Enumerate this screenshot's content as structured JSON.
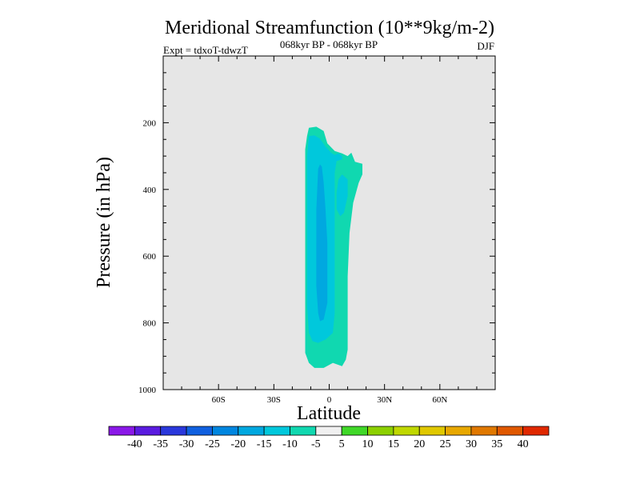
{
  "chart_data": {
    "type": "contour",
    "title": "Meridional Streamfunction (10**9kg/m-2)",
    "subtitle": "068kyr BP - 068kyr BP",
    "left_label": "Expt = tdxoT-tdwzT",
    "right_label": "DJF",
    "xlabel": "Latitude",
    "ylabel": "Pressure (in hPa)",
    "xlim": [
      -90,
      90
    ],
    "ylim": [
      1000,
      0
    ],
    "x_ticks": [
      {
        "value": -60,
        "label": "60S"
      },
      {
        "value": -30,
        "label": "30S"
      },
      {
        "value": 0,
        "label": "0"
      },
      {
        "value": 30,
        "label": "30N"
      },
      {
        "value": 60,
        "label": "60N"
      }
    ],
    "y_ticks": [
      {
        "value": 200,
        "label": "200"
      },
      {
        "value": 400,
        "label": "400"
      },
      {
        "value": 600,
        "label": "600"
      },
      {
        "value": 800,
        "label": "800"
      },
      {
        "value": 1000,
        "label": "1000"
      }
    ],
    "background_color": "#e6e6e6",
    "contour_regions": [
      {
        "level": "-10 to -5",
        "color": "#10d8b0",
        "outline": [
          [
            -11,
            215
          ],
          [
            -7,
            212
          ],
          [
            -3,
            225
          ],
          [
            -1,
            262
          ],
          [
            3,
            285
          ],
          [
            7,
            292
          ],
          [
            10,
            300
          ],
          [
            12,
            290
          ],
          [
            14,
            317
          ],
          [
            18,
            323
          ],
          [
            18,
            355
          ],
          [
            16,
            380
          ],
          [
            13,
            440
          ],
          [
            11,
            530
          ],
          [
            10,
            660
          ],
          [
            10,
            800
          ],
          [
            10,
            880
          ],
          [
            9,
            910
          ],
          [
            7,
            930
          ],
          [
            2,
            920
          ],
          [
            -3,
            935
          ],
          [
            -8,
            935
          ],
          [
            -11,
            920
          ],
          [
            -13,
            890
          ],
          [
            -13,
            820
          ],
          [
            -13,
            700
          ],
          [
            -13,
            550
          ],
          [
            -13,
            400
          ],
          [
            -13,
            280
          ],
          [
            -12,
            240
          ]
        ]
      },
      {
        "level": "-15 to -10",
        "color": "#00c8dc",
        "outline": [
          [
            -11,
            240
          ],
          [
            -8,
            238
          ],
          [
            -5,
            248
          ],
          [
            -2,
            272
          ],
          [
            1,
            290
          ],
          [
            3,
            297
          ],
          [
            5,
            292
          ],
          [
            7,
            300
          ],
          [
            7,
            310
          ],
          [
            4,
            315
          ],
          [
            3,
            350
          ],
          [
            3,
            450
          ],
          [
            3,
            560
          ],
          [
            3,
            680
          ],
          [
            3,
            770
          ],
          [
            2,
            830
          ],
          [
            -2,
            850
          ],
          [
            -6,
            860
          ],
          [
            -9,
            855
          ],
          [
            -11,
            830
          ],
          [
            -12,
            750
          ],
          [
            -12,
            640
          ],
          [
            -12,
            520
          ],
          [
            -12,
            400
          ],
          [
            -12,
            300
          ]
        ]
      },
      {
        "level": "-15 to -10",
        "color": "#00c8dc",
        "outline": [
          [
            5,
            370
          ],
          [
            7,
            355
          ],
          [
            10,
            370
          ],
          [
            10,
            420
          ],
          [
            8,
            470
          ],
          [
            6,
            480
          ],
          [
            4,
            460
          ],
          [
            4,
            410
          ]
        ]
      },
      {
        "level": "-20 to -15",
        "color": "#00a8e0",
        "outline": [
          [
            -6,
            338
          ],
          [
            -5,
            325
          ],
          [
            -4,
            332
          ],
          [
            -3,
            380
          ],
          [
            -2,
            460
          ],
          [
            -1,
            560
          ],
          [
            -1,
            660
          ],
          [
            -1,
            740
          ],
          [
            -3,
            790
          ],
          [
            -5,
            795
          ],
          [
            -6,
            770
          ],
          [
            -7,
            690
          ],
          [
            -7,
            580
          ],
          [
            -7,
            460
          ]
        ]
      }
    ],
    "colorbar": {
      "labels": [
        "-40",
        "-35",
        "-30",
        "-25",
        "-20",
        "-15",
        "-10",
        "-5",
        "5",
        "10",
        "15",
        "20",
        "25",
        "30",
        "35",
        "40"
      ],
      "colors": [
        "#8a18e8",
        "#5a1be0",
        "#2a38dc",
        "#1060e0",
        "#0086e0",
        "#00a8e0",
        "#00c8dc",
        "#10d8b0",
        "#f0f0f0",
        "#40d828",
        "#8cd000",
        "#c0d800",
        "#e0c800",
        "#e8a800",
        "#e07800",
        "#e05800",
        "#e02800"
      ]
    }
  }
}
